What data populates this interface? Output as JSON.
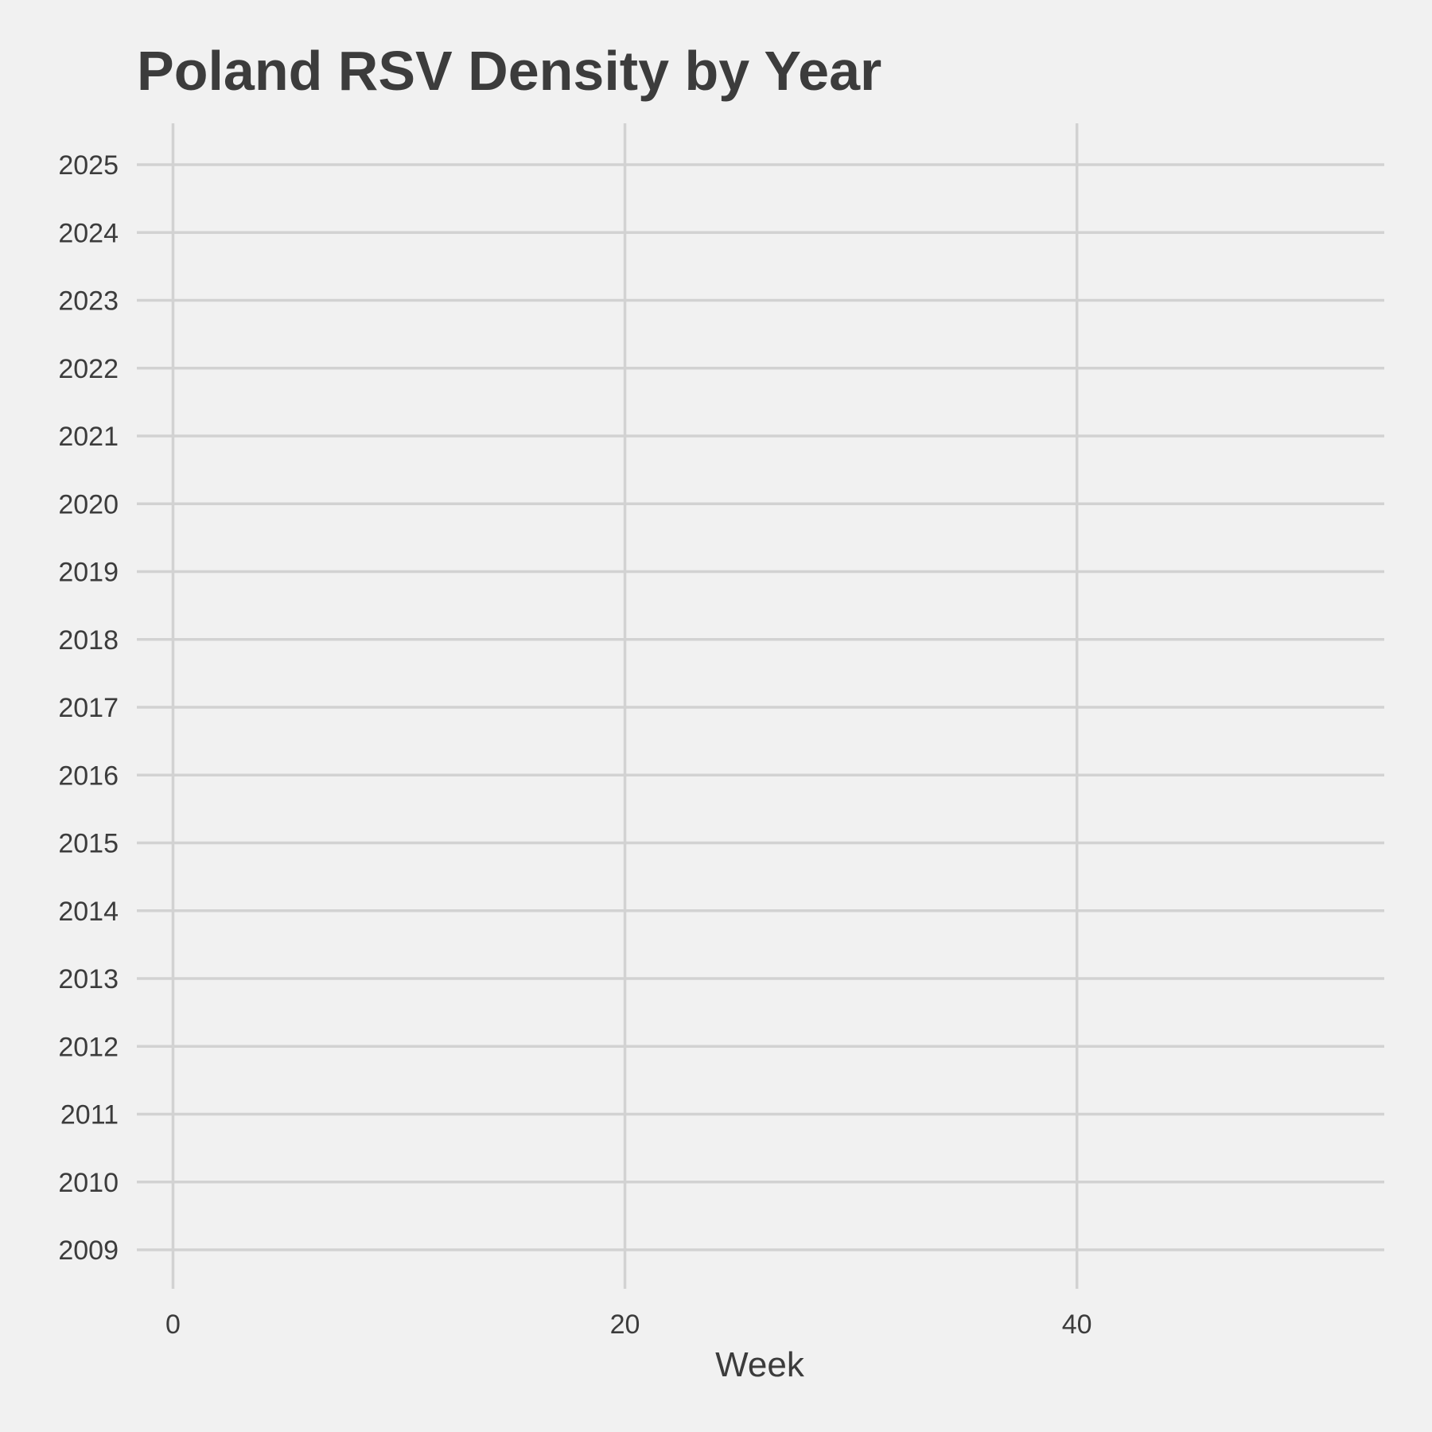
{
  "chart_data": {
    "type": "area",
    "title": "Poland RSV Density by Year",
    "xlabel": "Week",
    "ylabel": "",
    "x_ticks": [
      0,
      20,
      40
    ],
    "xlim": [
      -1.6,
      53.6
    ],
    "categories": [
      "2009",
      "2010",
      "2011",
      "2012",
      "2013",
      "2014",
      "2015",
      "2016",
      "2017",
      "2018",
      "2019",
      "2020",
      "2021",
      "2022",
      "2023",
      "2024",
      "2025"
    ],
    "series": [],
    "grid": true,
    "legend": "none",
    "colors": {
      "background": "#f1f1f1",
      "grid": "#d2d2d2",
      "text": "#3c3c3c"
    }
  }
}
